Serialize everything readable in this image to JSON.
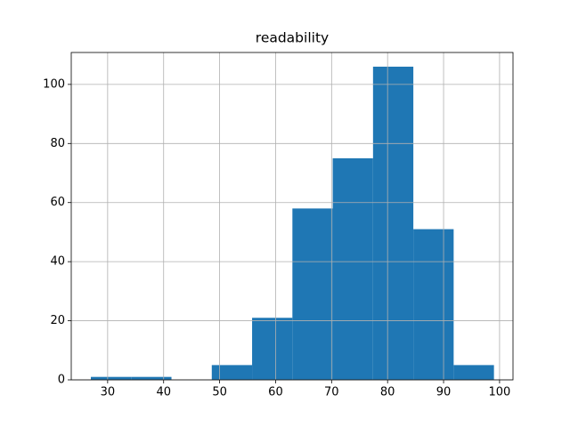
{
  "chart_data": {
    "type": "histogram",
    "title": "readability",
    "bins": [
      27,
      34.2,
      41.4,
      48.6,
      55.8,
      63,
      70.2,
      77.4,
      84.6,
      91.8,
      99
    ],
    "values": [
      1,
      1,
      0,
      5,
      21,
      58,
      75,
      106,
      51,
      5
    ],
    "color": "#1f77b4",
    "xlim": [
      23.5,
      102.4
    ],
    "xticks": [
      30,
      40,
      50,
      60,
      70,
      80,
      90,
      100
    ],
    "ylim": [
      0,
      110.8
    ],
    "yticks": [
      0,
      20,
      40,
      60,
      80,
      100
    ],
    "grid": true
  }
}
